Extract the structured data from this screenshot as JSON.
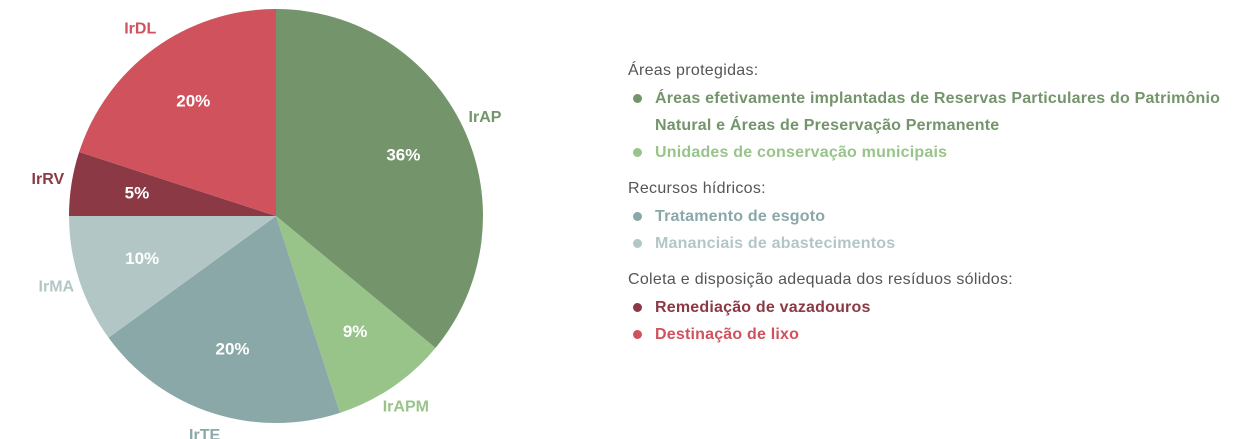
{
  "chart_data": {
    "type": "pie",
    "categories": [
      "IrAP",
      "IrAPM",
      "IrTE",
      "IrMA",
      "IrRV",
      "IrDL"
    ],
    "values": [
      36,
      9,
      20,
      10,
      5,
      20
    ],
    "value_labels": [
      "36%",
      "9%",
      "20%",
      "10%",
      "5%",
      "20%"
    ],
    "colors": [
      "#74956b",
      "#98c48a",
      "#8aa8a8",
      "#b3c6c6",
      "#8b3a45",
      "#d0525c"
    ],
    "legend": [
      {
        "title": "Áreas protegidas:",
        "items": [
          {
            "label": "Áreas efetivamente implantadas de Reservas Particulares do Patrimônio Natural e Áreas de Preservação Permanente",
            "color": "#74956b"
          },
          {
            "label": "Unidades de conservação municipais",
            "color": "#98c48a"
          }
        ]
      },
      {
        "title": "Recursos hídricos:",
        "items": [
          {
            "label": "Tratamento de esgoto",
            "color": "#8aa8a8"
          },
          {
            "label": "Mananciais de abastecimentos",
            "color": "#b3c6c6"
          }
        ]
      },
      {
        "title": "Coleta e disposição adequada dos resíduos sólidos:",
        "items": [
          {
            "label": "Remediação de vazadouros",
            "color": "#8b3a45"
          },
          {
            "label": "Destinação de lixo",
            "color": "#d0525c"
          }
        ]
      }
    ]
  }
}
